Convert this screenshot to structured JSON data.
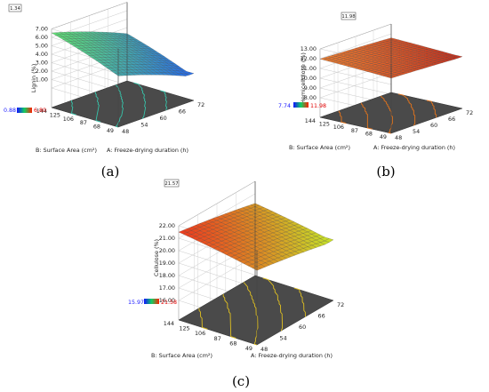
{
  "chart_data": [
    {
      "panel_label": "(a)",
      "type": "surface3d",
      "zlabel": "Lignin (%)",
      "xlabel": "A: Freeze-drying duration (h)",
      "ylabel": "B: Surface Area (cm²)",
      "x_ticks": [
        "48",
        "54",
        "60",
        "66",
        "72"
      ],
      "y_ticks": [
        "49",
        "68",
        "87",
        "106",
        "125",
        "144"
      ],
      "z_ticks": [
        "1.00",
        "2.00",
        "3.00",
        "4.00",
        "5.00",
        "6.00",
        "7.00"
      ],
      "zlim": [
        0,
        7
      ],
      "box_value": "1.34",
      "legend_min": "0.88",
      "legend_max": "6.80",
      "colormap": "blue-green",
      "contour_color": "#37c4aa",
      "surface_model": {
        "low": 0.88,
        "high": 6.8,
        "min_corner": "x=72,y=49",
        "max_corner": "x=48,y=144"
      }
    },
    {
      "panel_label": "(b)",
      "type": "surface3d",
      "zlabel": "Hemicellulose (%)",
      "xlabel": "A: Freeze-drying duration (h)",
      "ylabel": "B: Surface Area (cm²)",
      "x_ticks": [
        "48",
        "54",
        "60",
        "66",
        "72"
      ],
      "y_ticks": [
        "49",
        "68",
        "87",
        "106",
        "125",
        "144"
      ],
      "z_ticks": [
        "8.00",
        "9.00",
        "10.00",
        "11.00",
        "12.00",
        "13.00"
      ],
      "zlim": [
        8,
        13
      ],
      "box_value": "11.98",
      "legend_min": "7.74",
      "legend_max": "11.98",
      "colormap": "red-orange",
      "contour_color": "#e8751a",
      "surface_model": {
        "low": 11.3,
        "high": 12.0,
        "min_corner": "x=72,y=49",
        "max_corner": "x=48,y=144"
      }
    },
    {
      "panel_label": "(c)",
      "type": "surface3d",
      "zlabel": "Cellulose (%)",
      "xlabel": "A: Freeze-drying duration (h)",
      "ylabel": "B: Surface Area (cm²)",
      "x_ticks": [
        "48",
        "54",
        "60",
        "66",
        "72"
      ],
      "y_ticks": [
        "49",
        "68",
        "87",
        "106",
        "125",
        "144"
      ],
      "z_ticks": [
        "16.00",
        "17.00",
        "18.00",
        "19.00",
        "20.00",
        "21.00",
        "22.00"
      ],
      "zlim": [
        16,
        22
      ],
      "box_value": "21.57",
      "legend_min": "15.97",
      "legend_max": "21.58",
      "colormap": "red-orange-yellow",
      "contour_color": "#e0c020",
      "surface_model": {
        "low": 19.3,
        "high": 21.6,
        "min_corner": "x=72,y=49",
        "max_corner": "x=48,y=144"
      }
    }
  ],
  "panel_labels": [
    "(a)",
    "(b)",
    "(c)"
  ]
}
